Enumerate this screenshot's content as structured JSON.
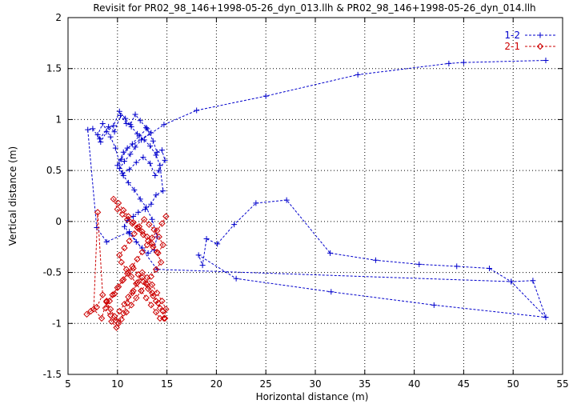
{
  "chart_data": {
    "type": "scatter",
    "title": "Revisit for PR02_98_146+1998-05-26_dyn_013.llh & PR02_98_146+1998-05-26_dyn_014.llh",
    "xlabel": "Horizontal distance (m)",
    "ylabel": "Vertical distance (m)",
    "xlim": [
      5,
      55
    ],
    "ylim": [
      -1.5,
      2
    ],
    "xticks": [
      "5",
      "10",
      "15",
      "20",
      "25",
      "30",
      "35",
      "40",
      "45",
      "50",
      "55"
    ],
    "yticks": [
      "-1.5",
      "-1",
      "-0.5",
      "0",
      "0.5",
      "1",
      "1.5",
      "2"
    ],
    "grid": true,
    "legend_position": "top-right",
    "series": [
      {
        "name": "1-2",
        "color": "#0000cc",
        "marker": "plus",
        "line": "dashed",
        "x": [
          53.3,
          49.8,
          47.6,
          44.3,
          40.5,
          36.1,
          31.5,
          27.1,
          24.0,
          21.8,
          20.1,
          19.0,
          18.6,
          18.2,
          22.0,
          31.6,
          42.0,
          53.3,
          52.0,
          49.8,
          14.0,
          11.2,
          8.9,
          7.9,
          7.0,
          7.5,
          8.2,
          9.1,
          9.7,
          10.3,
          10.9,
          11.3,
          11.8,
          12.3,
          12.9,
          13.4,
          11.0,
          10.4,
          10.0,
          10.6,
          11.5,
          12.2,
          13.0,
          13.6,
          14.0,
          14.5,
          14.8,
          14.2,
          13.8,
          13.3,
          12.6,
          11.9,
          11.2,
          10.5,
          9.8,
          9.3,
          8.5,
          8.0,
          8.3,
          8.9,
          9.6,
          10.2,
          10.8,
          11.4,
          12.0,
          12.7,
          13.3,
          13.9,
          14.3,
          14.6,
          13.9,
          13.4,
          12.8,
          12.1,
          11.6,
          11.0,
          10.7,
          11.2,
          11.9,
          12.5,
          13.1,
          13.7,
          14.0,
          13.5,
          12.9,
          12.3,
          11.7,
          11.1,
          10.6,
          10.2,
          10.7,
          11.3,
          11.8,
          12.4,
          14.7,
          18.0,
          25.0,
          34.3,
          43.5,
          45.0,
          53.3
        ],
        "y": [
          -0.94,
          -0.59,
          -0.46,
          -0.44,
          -0.42,
          -0.38,
          -0.31,
          0.21,
          0.18,
          -0.03,
          -0.22,
          -0.17,
          -0.43,
          -0.33,
          -0.56,
          -0.69,
          -0.82,
          -0.94,
          -0.58,
          -0.59,
          -0.47,
          -0.1,
          -0.2,
          -0.06,
          0.9,
          0.91,
          0.81,
          0.93,
          0.88,
          1.04,
          0.96,
          0.95,
          1.05,
          0.99,
          0.92,
          0.87,
          0.72,
          0.61,
          0.55,
          0.68,
          0.76,
          0.84,
          0.91,
          0.79,
          0.68,
          0.7,
          0.6,
          0.5,
          0.45,
          0.57,
          0.63,
          0.58,
          0.51,
          0.47,
          0.72,
          0.83,
          0.96,
          0.85,
          0.78,
          0.88,
          0.94,
          1.08,
          1.01,
          0.93,
          0.86,
          0.8,
          0.74,
          0.65,
          0.55,
          0.3,
          0.26,
          0.17,
          0.12,
          0.09,
          0.05,
          0.01,
          -0.05,
          -0.12,
          -0.2,
          -0.26,
          -0.31,
          -0.28,
          -0.15,
          0.02,
          0.14,
          0.22,
          0.31,
          0.38,
          0.45,
          0.52,
          0.59,
          0.66,
          0.73,
          0.8,
          0.95,
          1.09,
          1.23,
          1.44,
          1.55,
          1.56,
          1.58
        ]
      },
      {
        "name": "2-1",
        "color": "#cc0000",
        "marker": "diamond",
        "line": "dashed",
        "x": [
          6.9,
          7.3,
          7.9,
          8.5,
          8.0,
          7.6,
          8.4,
          8.9,
          9.3,
          9.8,
          10.2,
          10.7,
          11.1,
          11.6,
          12.0,
          12.5,
          13.0,
          13.5,
          13.9,
          14.3,
          14.8,
          14.6,
          14.1,
          13.6,
          13.1,
          12.6,
          12.1,
          11.6,
          11.1,
          10.6,
          10.1,
          9.7,
          9.2,
          8.8,
          9.4,
          9.9,
          10.4,
          10.9,
          11.4,
          11.9,
          12.4,
          12.9,
          13.4,
          13.9,
          14.4,
          14.0,
          13.5,
          13.0,
          12.5,
          12.0,
          11.5,
          11.0,
          10.5,
          10.0,
          9.6,
          10.1,
          10.6,
          11.1,
          11.6,
          12.1,
          12.6,
          13.1,
          13.6,
          14.1,
          14.6,
          14.2,
          13.7,
          13.2,
          12.7,
          12.2,
          11.7,
          11.2,
          10.7,
          10.2,
          10.4,
          10.9,
          11.4,
          11.9,
          12.4,
          12.9,
          13.4,
          13.9,
          14.3,
          14.7,
          14.9,
          14.5,
          14.0,
          13.5,
          13.0,
          12.5,
          12.0,
          11.5,
          11.0,
          10.6,
          10.1,
          9.7,
          9.3,
          8.9,
          9.5,
          10.0,
          10.5,
          11.0,
          11.5,
          12.0,
          12.5,
          13.0,
          13.5,
          14.0,
          14.5,
          14.9
        ],
        "y": [
          -0.91,
          -0.88,
          -0.84,
          -0.72,
          0.09,
          -0.86,
          -0.95,
          -0.78,
          -0.92,
          -0.97,
          -0.88,
          -0.81,
          -0.74,
          -0.68,
          -0.6,
          -0.55,
          -0.62,
          -0.7,
          -0.78,
          -0.85,
          -0.95,
          -0.88,
          -0.8,
          -0.73,
          -0.66,
          -0.59,
          -0.52,
          -0.46,
          -0.5,
          -0.57,
          -0.64,
          -0.71,
          -0.78,
          -0.85,
          -0.98,
          -1.04,
          -0.96,
          -0.89,
          -0.82,
          -0.75,
          -0.68,
          -0.61,
          -0.54,
          -0.47,
          -0.4,
          -0.3,
          -0.22,
          -0.15,
          -0.1,
          -0.06,
          -0.02,
          0.02,
          0.07,
          0.12,
          0.22,
          0.18,
          0.11,
          0.05,
          -0.01,
          -0.07,
          -0.13,
          -0.19,
          -0.25,
          -0.31,
          -0.23,
          -0.15,
          -0.08,
          -0.03,
          0.02,
          -0.05,
          -0.12,
          -0.19,
          -0.26,
          -0.33,
          -0.4,
          -0.47,
          -0.54,
          -0.61,
          -0.68,
          -0.75,
          -0.82,
          -0.89,
          -0.95,
          -0.95,
          -0.86,
          -0.78,
          -0.7,
          -0.62,
          -0.55,
          -0.5,
          -0.6,
          -0.7,
          -0.8,
          -0.9,
          -1.0,
          -0.93,
          -0.86,
          -0.79,
          -0.72,
          -0.65,
          -0.58,
          -0.51,
          -0.44,
          -0.37,
          -0.3,
          -0.23,
          -0.16,
          -0.09,
          -0.02,
          0.05
        ]
      }
    ]
  }
}
